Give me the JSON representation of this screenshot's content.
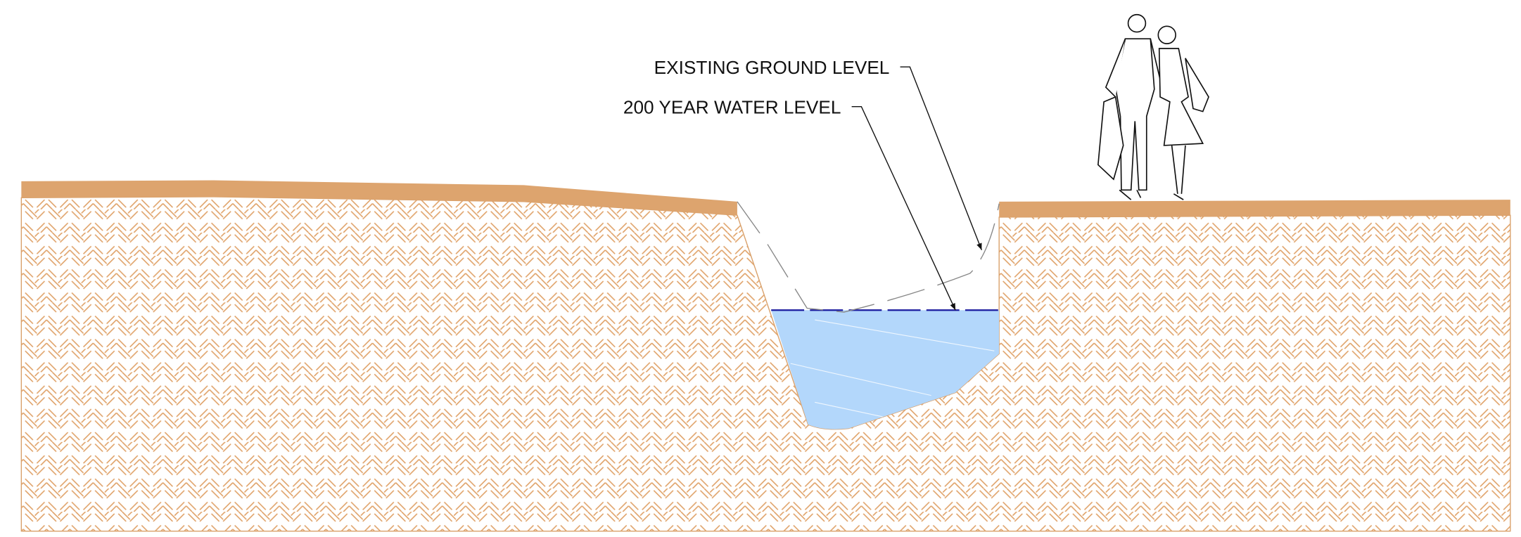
{
  "labels": {
    "existing_ground": "EXISTING GROUND LEVEL",
    "water_level": "200 YEAR WATER LEVEL"
  }
}
